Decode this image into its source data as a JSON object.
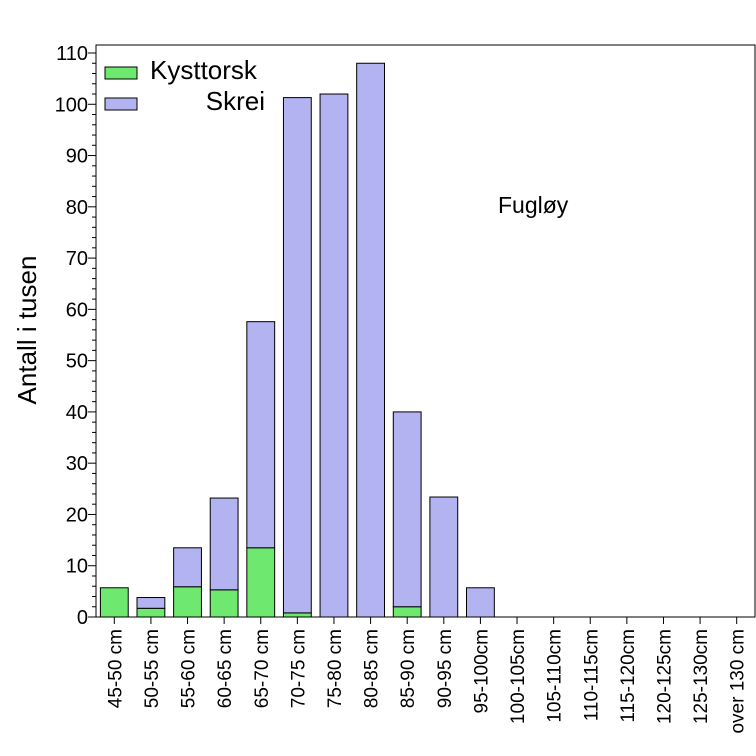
{
  "chart_data": {
    "type": "bar",
    "stacked": true,
    "categories": [
      "45-50 cm",
      "50-55 cm",
      "55-60 cm",
      "60-65 cm",
      "65-70 cm",
      "70-75 cm",
      "75-80 cm",
      "80-85 cm",
      "85-90 cm",
      "90-95 cm",
      "95-100cm",
      "100-105cm",
      "105-110cm",
      "110-115cm",
      "115-120cm",
      "120-125cm",
      "125-130cm",
      "over 130 cm"
    ],
    "series": [
      {
        "name": "Kysttorsk",
        "color": "#6EE86E",
        "values": [
          5.7,
          1.7,
          5.9,
          5.3,
          13.5,
          0.8,
          0,
          0,
          2.0,
          0,
          0,
          0,
          0,
          0,
          0,
          0,
          0,
          0
        ]
      },
      {
        "name": "Skrei",
        "color": "#B3B3F2",
        "values": [
          0,
          2.1,
          7.6,
          17.9,
          44.1,
          100.5,
          102.0,
          108.0,
          38.0,
          23.4,
          5.7,
          0,
          0,
          0,
          0,
          0,
          0,
          0
        ]
      }
    ],
    "ylabel": "Antall i tusen",
    "ylim": [
      0,
      110
    ],
    "yticks": [
      0,
      10,
      20,
      30,
      40,
      50,
      60,
      70,
      80,
      90,
      100,
      110
    ],
    "annotation": "Fugløy",
    "legend_position": "top-left",
    "grid": false
  }
}
